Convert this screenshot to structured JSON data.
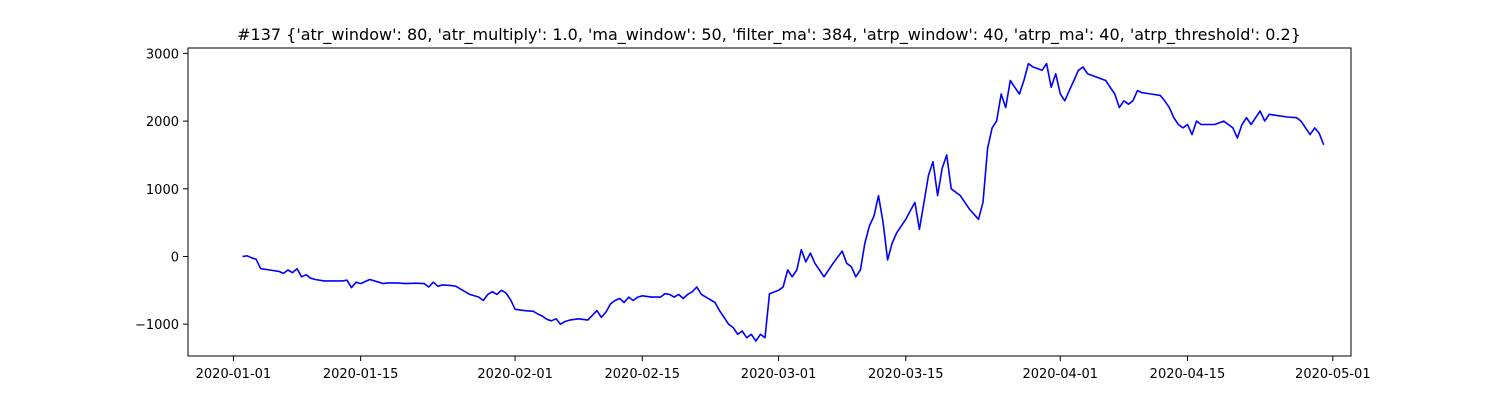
{
  "chart_data": {
    "type": "line",
    "title": "#137 {'atr_window': 80, 'atr_multiply': 1.0, 'ma_window': 50, 'filter_ma': 384, 'atrp_window': 40, 'atrp_ma': 40, 'atrp_threshold': 0.2}",
    "xlabel": "",
    "ylabel": "",
    "x_axis": {
      "kind": "date",
      "range": [
        "2019-12-27",
        "2020-05-03"
      ],
      "ticks": [
        "2020-01-01",
        "2020-01-15",
        "2020-02-01",
        "2020-02-15",
        "2020-03-01",
        "2020-03-15",
        "2020-04-01",
        "2020-04-15",
        "2020-05-01"
      ]
    },
    "y_axis": {
      "range": [
        -1470,
        3080
      ],
      "ticks": [
        -1000,
        0,
        1000,
        2000,
        3000
      ],
      "tick_labels": [
        "−1000",
        "0",
        "1000",
        "2000",
        "3000"
      ]
    },
    "grid": false,
    "legend": "none",
    "series": [
      {
        "color": "#0000ff",
        "points": [
          [
            "2020-01-02",
            0
          ],
          [
            "2020-01-02T12:00",
            10
          ],
          [
            "2020-01-03",
            -20
          ],
          [
            "2020-01-03T12:00",
            -40
          ],
          [
            "2020-01-04",
            -180
          ],
          [
            "2020-01-05",
            -200
          ],
          [
            "2020-01-06",
            -220
          ],
          [
            "2020-01-06T12:00",
            -250
          ],
          [
            "2020-01-07",
            -200
          ],
          [
            "2020-01-07T12:00",
            -240
          ],
          [
            "2020-01-08",
            -180
          ],
          [
            "2020-01-08T12:00",
            -300
          ],
          [
            "2020-01-09",
            -270
          ],
          [
            "2020-01-09T12:00",
            -320
          ],
          [
            "2020-01-10",
            -340
          ],
          [
            "2020-01-11",
            -360
          ],
          [
            "2020-01-12",
            -360
          ],
          [
            "2020-01-13",
            -360
          ],
          [
            "2020-01-13T12:00",
            -350
          ],
          [
            "2020-01-14",
            -460
          ],
          [
            "2020-01-14T12:00",
            -380
          ],
          [
            "2020-01-15",
            -400
          ],
          [
            "2020-01-16",
            -340
          ],
          [
            "2020-01-17",
            -380
          ],
          [
            "2020-01-17T12:00",
            -400
          ],
          [
            "2020-01-18",
            -390
          ],
          [
            "2020-01-19",
            -390
          ],
          [
            "2020-01-20",
            -400
          ],
          [
            "2020-01-21",
            -395
          ],
          [
            "2020-01-22",
            -400
          ],
          [
            "2020-01-22T12:00",
            -450
          ],
          [
            "2020-01-23",
            -380
          ],
          [
            "2020-01-23T12:00",
            -440
          ],
          [
            "2020-01-24",
            -420
          ],
          [
            "2020-01-25",
            -430
          ],
          [
            "2020-01-25T12:00",
            -440
          ],
          [
            "2020-01-27",
            -560
          ],
          [
            "2020-01-28",
            -600
          ],
          [
            "2020-01-28T12:00",
            -650
          ],
          [
            "2020-01-29",
            -560
          ],
          [
            "2020-01-29T12:00",
            -520
          ],
          [
            "2020-01-30",
            -560
          ],
          [
            "2020-01-30T12:00",
            -500
          ],
          [
            "2020-01-31",
            -540
          ],
          [
            "2020-01-31T12:00",
            -640
          ],
          [
            "2020-02-01",
            -780
          ],
          [
            "2020-02-02",
            -800
          ],
          [
            "2020-02-03",
            -810
          ],
          [
            "2020-02-03T12:00",
            -850
          ],
          [
            "2020-02-04",
            -880
          ],
          [
            "2020-02-04T12:00",
            -930
          ],
          [
            "2020-02-05",
            -950
          ],
          [
            "2020-02-05T12:00",
            -920
          ],
          [
            "2020-02-06",
            -1000
          ],
          [
            "2020-02-06T12:00",
            -960
          ],
          [
            "2020-02-07",
            -940
          ],
          [
            "2020-02-07T12:00",
            -930
          ],
          [
            "2020-02-08",
            -920
          ],
          [
            "2020-02-09",
            -940
          ],
          [
            "2020-02-10",
            -800
          ],
          [
            "2020-02-10T12:00",
            -900
          ],
          [
            "2020-02-11",
            -820
          ],
          [
            "2020-02-11T12:00",
            -700
          ],
          [
            "2020-02-12",
            -650
          ],
          [
            "2020-02-12T12:00",
            -620
          ],
          [
            "2020-02-13",
            -680
          ],
          [
            "2020-02-13T12:00",
            -600
          ],
          [
            "2020-02-14",
            -650
          ],
          [
            "2020-02-14T12:00",
            -600
          ],
          [
            "2020-02-15",
            -580
          ],
          [
            "2020-02-16",
            -600
          ],
          [
            "2020-02-17",
            -600
          ],
          [
            "2020-02-17T12:00",
            -550
          ],
          [
            "2020-02-18",
            -560
          ],
          [
            "2020-02-18T12:00",
            -600
          ],
          [
            "2020-02-19",
            -560
          ],
          [
            "2020-02-19T12:00",
            -620
          ],
          [
            "2020-02-20",
            -560
          ],
          [
            "2020-02-20T12:00",
            -520
          ],
          [
            "2020-02-21",
            -450
          ],
          [
            "2020-02-21T12:00",
            -560
          ],
          [
            "2020-02-22",
            -600
          ],
          [
            "2020-02-23",
            -680
          ],
          [
            "2020-02-23T12:00",
            -800
          ],
          [
            "2020-02-24",
            -900
          ],
          [
            "2020-02-24T12:00",
            -1000
          ],
          [
            "2020-02-25",
            -1050
          ],
          [
            "2020-02-25T12:00",
            -1150
          ],
          [
            "2020-02-26",
            -1100
          ],
          [
            "2020-02-26T12:00",
            -1200
          ],
          [
            "2020-02-27",
            -1150
          ],
          [
            "2020-02-27T12:00",
            -1250
          ],
          [
            "2020-02-28",
            -1150
          ],
          [
            "2020-02-28T12:00",
            -1200
          ],
          [
            "2020-02-29",
            -550
          ],
          [
            "2020-03-01",
            -500
          ],
          [
            "2020-03-01T12:00",
            -450
          ],
          [
            "2020-03-02",
            -200
          ],
          [
            "2020-03-02T12:00",
            -300
          ],
          [
            "2020-03-03",
            -200
          ],
          [
            "2020-03-03T12:00",
            100
          ],
          [
            "2020-03-04",
            -80
          ],
          [
            "2020-03-04T12:00",
            50
          ],
          [
            "2020-03-05",
            -100
          ],
          [
            "2020-03-05T12:00",
            -200
          ],
          [
            "2020-03-06",
            -300
          ],
          [
            "2020-03-06T12:00",
            -200
          ],
          [
            "2020-03-07",
            -100
          ],
          [
            "2020-03-08",
            80
          ],
          [
            "2020-03-08T12:00",
            -100
          ],
          [
            "2020-03-09",
            -150
          ],
          [
            "2020-03-09T12:00",
            -300
          ],
          [
            "2020-03-10",
            -200
          ],
          [
            "2020-03-10T12:00",
            200
          ],
          [
            "2020-03-11",
            450
          ],
          [
            "2020-03-11T12:00",
            600
          ],
          [
            "2020-03-12",
            900
          ],
          [
            "2020-03-12T12:00",
            500
          ],
          [
            "2020-03-13",
            -50
          ],
          [
            "2020-03-13T12:00",
            200
          ],
          [
            "2020-03-14",
            350
          ],
          [
            "2020-03-15",
            550
          ],
          [
            "2020-03-16",
            800
          ],
          [
            "2020-03-16T12:00",
            400
          ],
          [
            "2020-03-17",
            800
          ],
          [
            "2020-03-17T12:00",
            1200
          ],
          [
            "2020-03-18",
            1400
          ],
          [
            "2020-03-18T12:00",
            900
          ],
          [
            "2020-03-19",
            1300
          ],
          [
            "2020-03-19T12:00",
            1500
          ],
          [
            "2020-03-20",
            1000
          ],
          [
            "2020-03-21",
            900
          ],
          [
            "2020-03-22",
            700
          ],
          [
            "2020-03-23",
            550
          ],
          [
            "2020-03-23T12:00",
            800
          ],
          [
            "2020-03-24",
            1600
          ],
          [
            "2020-03-24T12:00",
            1900
          ],
          [
            "2020-03-25",
            2000
          ],
          [
            "2020-03-25T12:00",
            2400
          ],
          [
            "2020-03-26",
            2200
          ],
          [
            "2020-03-26T12:00",
            2600
          ],
          [
            "2020-03-27",
            2500
          ],
          [
            "2020-03-27T12:00",
            2400
          ],
          [
            "2020-03-28",
            2600
          ],
          [
            "2020-03-28T12:00",
            2850
          ],
          [
            "2020-03-29",
            2800
          ],
          [
            "2020-03-30",
            2750
          ],
          [
            "2020-03-30T12:00",
            2850
          ],
          [
            "2020-03-31",
            2500
          ],
          [
            "2020-03-31T12:00",
            2700
          ],
          [
            "2020-04-01",
            2400
          ],
          [
            "2020-04-01T12:00",
            2300
          ],
          [
            "2020-04-02",
            2450
          ],
          [
            "2020-04-02T12:00",
            2600
          ],
          [
            "2020-04-03",
            2750
          ],
          [
            "2020-04-03T12:00",
            2800
          ],
          [
            "2020-04-04",
            2700
          ],
          [
            "2020-04-05",
            2650
          ],
          [
            "2020-04-06",
            2600
          ],
          [
            "2020-04-06T12:00",
            2500
          ],
          [
            "2020-04-07",
            2400
          ],
          [
            "2020-04-07T12:00",
            2200
          ],
          [
            "2020-04-08",
            2300
          ],
          [
            "2020-04-08T12:00",
            2250
          ],
          [
            "2020-04-09",
            2300
          ],
          [
            "2020-04-09T12:00",
            2450
          ],
          [
            "2020-04-10",
            2420
          ],
          [
            "2020-04-11",
            2400
          ],
          [
            "2020-04-12",
            2380
          ],
          [
            "2020-04-12T12:00",
            2300
          ],
          [
            "2020-04-13",
            2200
          ],
          [
            "2020-04-13T12:00",
            2050
          ],
          [
            "2020-04-14",
            1950
          ],
          [
            "2020-04-14T12:00",
            1900
          ],
          [
            "2020-04-15",
            1950
          ],
          [
            "2020-04-15T12:00",
            1800
          ],
          [
            "2020-04-16",
            2000
          ],
          [
            "2020-04-16T12:00",
            1950
          ],
          [
            "2020-04-17",
            1950
          ],
          [
            "2020-04-18",
            1950
          ],
          [
            "2020-04-19",
            2000
          ],
          [
            "2020-04-19T12:00",
            1950
          ],
          [
            "2020-04-20",
            1900
          ],
          [
            "2020-04-20T12:00",
            1750
          ],
          [
            "2020-04-21",
            1950
          ],
          [
            "2020-04-21T12:00",
            2050
          ],
          [
            "2020-04-22",
            1950
          ],
          [
            "2020-04-22T12:00",
            2050
          ],
          [
            "2020-04-23",
            2150
          ],
          [
            "2020-04-23T12:00",
            2000
          ],
          [
            "2020-04-24",
            2100
          ],
          [
            "2020-04-25",
            2080
          ],
          [
            "2020-04-26",
            2060
          ],
          [
            "2020-04-27",
            2050
          ],
          [
            "2020-04-27T12:00",
            2000
          ],
          [
            "2020-04-28",
            1900
          ],
          [
            "2020-04-28T12:00",
            1800
          ],
          [
            "2020-04-29",
            1900
          ],
          [
            "2020-04-29T12:00",
            1820
          ],
          [
            "2020-04-30",
            1650
          ]
        ]
      }
    ]
  }
}
